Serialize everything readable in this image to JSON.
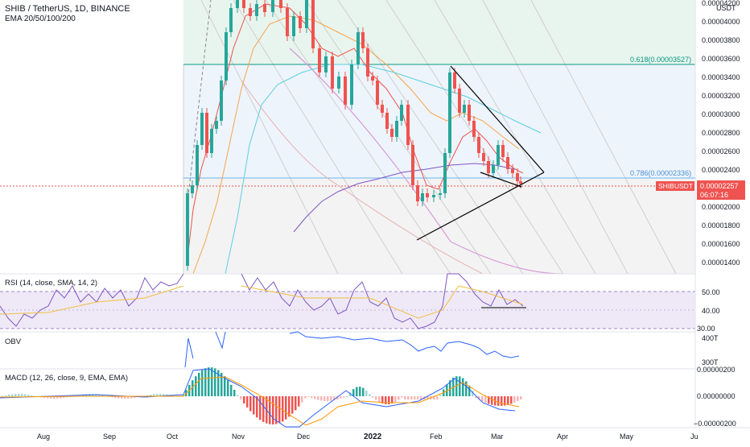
{
  "header": {
    "title": "SHIB / TetherUS, 1D, BINANCE",
    "indicator": "EMA 20/50/100/200"
  },
  "price_axis": {
    "currency": "USDT",
    "ticks": [
      "0.00004200",
      "0.00004000",
      "0.00003800",
      "0.00003600",
      "0.00003400",
      "0.00003200",
      "0.00003000",
      "0.00002800",
      "0.00002600",
      "0.00002400",
      "0.00002200",
      "0.00002000",
      "0.00001800",
      "0.00001600",
      "0.00001400"
    ],
    "symbol_tag": "SHIBUSDT",
    "last_price": "0.00002257",
    "countdown": "06:07:16"
  },
  "fib": {
    "level_618": "0.618(0.00003527)",
    "level_786": "0.786(0.00002336)"
  },
  "rsi": {
    "label": "RSI (14, close, SMA, 14, 2)",
    "ticks": [
      "50.00",
      "40.00",
      "30.00"
    ]
  },
  "obv": {
    "label": "OBV",
    "ticks": [
      "400T",
      "300T"
    ]
  },
  "macd": {
    "label": "MACD (12, 26, close, 9, EMA, EMA)",
    "ticks": [
      "0.00000200",
      "0.00000000",
      "−0.00000200"
    ]
  },
  "time_axis": {
    "labels": [
      "Aug",
      "Sep",
      "Oct",
      "Nov",
      "Dec",
      "2022",
      "Feb",
      "Mar",
      "Apr",
      "May",
      "Ju"
    ]
  },
  "colors": {
    "up": "#26a69a",
    "down": "#ef5350",
    "ema20": "#ef5350",
    "ema50": "#f7a350",
    "ema100": "#5bd0e0",
    "ema200": "#7e57c2",
    "rsi": "#7e57c2",
    "rsi_ma": "#f0c040",
    "obv": "#2962ff",
    "macd": "#2962ff",
    "signal": "#ff9800"
  },
  "chart_data": {
    "type": "candlestick",
    "symbol": "SHIBUSDT",
    "interval": "1D",
    "ylim": [
      1.36e-05,
      4.24e-05
    ],
    "candles_approx": [
      {
        "date": "2021-10-05",
        "open": 1.35e-05,
        "close": 2.55e-05
      },
      {
        "date": "2021-10-15",
        "open": 2.55e-05,
        "close": 2.7e-05
      },
      {
        "date": "2021-10-25",
        "open": 3e-05,
        "close": 4.2e-05
      },
      {
        "date": "2021-11-10",
        "open": 4.2e-05,
        "close": 4.1e-05
      },
      {
        "date": "2021-11-25",
        "open": 4e-05,
        "close": 3.95e-05
      },
      {
        "date": "2021-12-10",
        "open": 3.7e-05,
        "close": 3.35e-05
      },
      {
        "date": "2021-12-25",
        "open": 3.8e-05,
        "close": 3.3e-05
      },
      {
        "date": "2022-01-10",
        "open": 2.9e-05,
        "close": 2.7e-05
      },
      {
        "date": "2022-01-22",
        "open": 2.4e-05,
        "close": 2.05e-05
      },
      {
        "date": "2022-02-01",
        "open": 2.15e-05,
        "close": 2.35e-05
      },
      {
        "date": "2022-02-07",
        "open": 2.6e-05,
        "close": 3.5e-05
      },
      {
        "date": "2022-02-15",
        "open": 3.2e-05,
        "close": 2.9e-05
      },
      {
        "date": "2022-02-25",
        "open": 2.6e-05,
        "close": 2.45e-05
      },
      {
        "date": "2022-03-05",
        "open": 2.5e-05,
        "close": 2.4e-05
      },
      {
        "date": "2022-03-12",
        "open": 2.35e-05,
        "close": 2.26e-05
      }
    ],
    "fib_levels": [
      {
        "ratio": 0.618,
        "price": 3.527e-05
      },
      {
        "ratio": 0.786,
        "price": 2.336e-05
      }
    ],
    "last_price": 2.257e-05,
    "rsi_range": [
      28,
      60
    ],
    "macd_range": [
      -2.2e-06,
      2.2e-06
    ]
  }
}
